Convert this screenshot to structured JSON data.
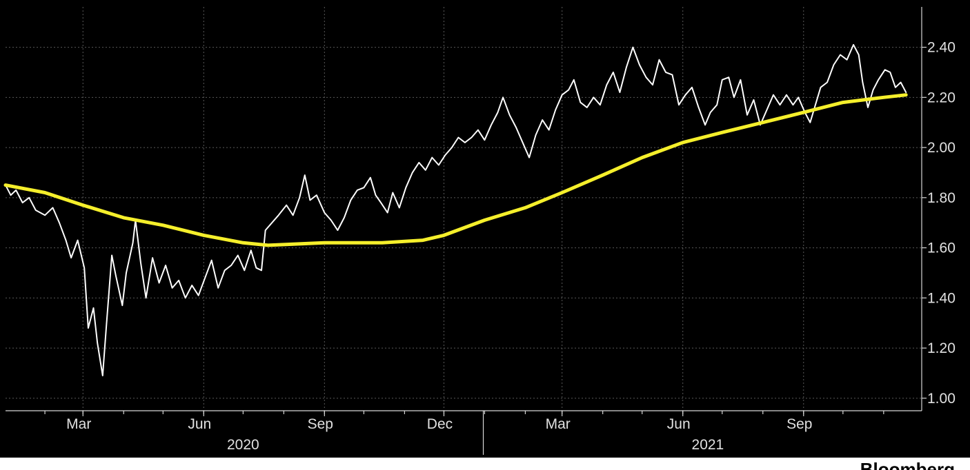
{
  "watermark": "Bloomberg",
  "colors": {
    "background": "#000000",
    "series_main": "#ffffff",
    "series_ma": "#f5ef2b",
    "text": "#e0e0e0"
  },
  "chart_data": {
    "type": "line",
    "title": "",
    "xlabel": "",
    "ylabel": "",
    "x_range": [
      "2020-01-02",
      "2021-11-30"
    ],
    "ylim": [
      0.95,
      2.55
    ],
    "y_ticks": [
      "1.00",
      "1.20",
      "1.40",
      "1.60",
      "1.80",
      "2.00",
      "2.20",
      "2.40"
    ],
    "x_month_ticks": [
      {
        "date": "2020-03-01",
        "label": "Mar"
      },
      {
        "date": "2020-06-01",
        "label": "Jun"
      },
      {
        "date": "2020-09-01",
        "label": "Sep"
      },
      {
        "date": "2020-12-01",
        "label": "Dec"
      },
      {
        "date": "2021-03-01",
        "label": "Mar"
      },
      {
        "date": "2021-06-01",
        "label": "Jun"
      },
      {
        "date": "2021-09-01",
        "label": "Sep"
      }
    ],
    "x_year_labels": [
      {
        "date": "2020-07-01",
        "label": "2020"
      },
      {
        "date": "2021-06-20",
        "label": "2021"
      }
    ],
    "grid": true,
    "y_axis_side": "right",
    "series": [
      {
        "color": "#ffffff",
        "points": [
          [
            "2020-01-02",
            1.85
          ],
          [
            "2020-01-06",
            1.81
          ],
          [
            "2020-01-10",
            1.83
          ],
          [
            "2020-01-15",
            1.78
          ],
          [
            "2020-01-20",
            1.8
          ],
          [
            "2020-01-25",
            1.75
          ],
          [
            "2020-02-01",
            1.73
          ],
          [
            "2020-02-07",
            1.76
          ],
          [
            "2020-02-12",
            1.7
          ],
          [
            "2020-02-17",
            1.63
          ],
          [
            "2020-02-21",
            1.56
          ],
          [
            "2020-02-26",
            1.63
          ],
          [
            "2020-03-02",
            1.52
          ],
          [
            "2020-03-05",
            1.28
          ],
          [
            "2020-03-09",
            1.36
          ],
          [
            "2020-03-12",
            1.22
          ],
          [
            "2020-03-16",
            1.09
          ],
          [
            "2020-03-19",
            1.3
          ],
          [
            "2020-03-23",
            1.57
          ],
          [
            "2020-03-26",
            1.49
          ],
          [
            "2020-03-31",
            1.37
          ],
          [
            "2020-04-03",
            1.5
          ],
          [
            "2020-04-08",
            1.62
          ],
          [
            "2020-04-10",
            1.71
          ],
          [
            "2020-04-14",
            1.54
          ],
          [
            "2020-04-18",
            1.4
          ],
          [
            "2020-04-23",
            1.56
          ],
          [
            "2020-04-28",
            1.46
          ],
          [
            "2020-05-03",
            1.53
          ],
          [
            "2020-05-08",
            1.44
          ],
          [
            "2020-05-13",
            1.47
          ],
          [
            "2020-05-18",
            1.4
          ],
          [
            "2020-05-23",
            1.45
          ],
          [
            "2020-05-28",
            1.41
          ],
          [
            "2020-06-02",
            1.48
          ],
          [
            "2020-06-07",
            1.55
          ],
          [
            "2020-06-12",
            1.44
          ],
          [
            "2020-06-17",
            1.51
          ],
          [
            "2020-06-22",
            1.53
          ],
          [
            "2020-06-27",
            1.57
          ],
          [
            "2020-07-02",
            1.51
          ],
          [
            "2020-07-07",
            1.59
          ],
          [
            "2020-07-11",
            1.52
          ],
          [
            "2020-07-15",
            1.51
          ],
          [
            "2020-07-18",
            1.67
          ],
          [
            "2020-07-23",
            1.7
          ],
          [
            "2020-07-28",
            1.73
          ],
          [
            "2020-08-03",
            1.77
          ],
          [
            "2020-08-08",
            1.73
          ],
          [
            "2020-08-13",
            1.8
          ],
          [
            "2020-08-17",
            1.89
          ],
          [
            "2020-08-21",
            1.79
          ],
          [
            "2020-08-26",
            1.81
          ],
          [
            "2020-09-01",
            1.74
          ],
          [
            "2020-09-06",
            1.71
          ],
          [
            "2020-09-11",
            1.67
          ],
          [
            "2020-09-16",
            1.72
          ],
          [
            "2020-09-21",
            1.79
          ],
          [
            "2020-09-26",
            1.83
          ],
          [
            "2020-10-01",
            1.84
          ],
          [
            "2020-10-06",
            1.88
          ],
          [
            "2020-10-10",
            1.81
          ],
          [
            "2020-10-14",
            1.78
          ],
          [
            "2020-10-19",
            1.74
          ],
          [
            "2020-10-23",
            1.82
          ],
          [
            "2020-10-28",
            1.76
          ],
          [
            "2020-11-02",
            1.84
          ],
          [
            "2020-11-07",
            1.9
          ],
          [
            "2020-11-12",
            1.94
          ],
          [
            "2020-11-17",
            1.91
          ],
          [
            "2020-11-22",
            1.96
          ],
          [
            "2020-11-27",
            1.93
          ],
          [
            "2020-12-02",
            1.97
          ],
          [
            "2020-12-07",
            2.0
          ],
          [
            "2020-12-12",
            2.04
          ],
          [
            "2020-12-17",
            2.02
          ],
          [
            "2020-12-22",
            2.04
          ],
          [
            "2020-12-27",
            2.07
          ],
          [
            "2021-01-01",
            2.03
          ],
          [
            "2021-01-06",
            2.09
          ],
          [
            "2021-01-11",
            2.14
          ],
          [
            "2021-01-15",
            2.2
          ],
          [
            "2021-01-20",
            2.13
          ],
          [
            "2021-01-25",
            2.08
          ],
          [
            "2021-01-30",
            2.02
          ],
          [
            "2021-02-04",
            1.96
          ],
          [
            "2021-02-09",
            2.05
          ],
          [
            "2021-02-14",
            2.11
          ],
          [
            "2021-02-19",
            2.07
          ],
          [
            "2021-02-24",
            2.15
          ],
          [
            "2021-03-01",
            2.21
          ],
          [
            "2021-03-06",
            2.23
          ],
          [
            "2021-03-10",
            2.27
          ],
          [
            "2021-03-15",
            2.18
          ],
          [
            "2021-03-20",
            2.16
          ],
          [
            "2021-03-25",
            2.2
          ],
          [
            "2021-03-30",
            2.17
          ],
          [
            "2021-04-04",
            2.25
          ],
          [
            "2021-04-09",
            2.3
          ],
          [
            "2021-04-14",
            2.22
          ],
          [
            "2021-04-19",
            2.32
          ],
          [
            "2021-04-24",
            2.4
          ],
          [
            "2021-04-29",
            2.33
          ],
          [
            "2021-05-04",
            2.28
          ],
          [
            "2021-05-09",
            2.25
          ],
          [
            "2021-05-14",
            2.35
          ],
          [
            "2021-05-19",
            2.3
          ],
          [
            "2021-05-24",
            2.29
          ],
          [
            "2021-05-29",
            2.17
          ],
          [
            "2021-06-03",
            2.21
          ],
          [
            "2021-06-08",
            2.24
          ],
          [
            "2021-06-13",
            2.16
          ],
          [
            "2021-06-18",
            2.09
          ],
          [
            "2021-06-22",
            2.14
          ],
          [
            "2021-06-27",
            2.17
          ],
          [
            "2021-07-01",
            2.27
          ],
          [
            "2021-07-06",
            2.28
          ],
          [
            "2021-07-10",
            2.2
          ],
          [
            "2021-07-15",
            2.27
          ],
          [
            "2021-07-20",
            2.13
          ],
          [
            "2021-07-25",
            2.19
          ],
          [
            "2021-07-30",
            2.09
          ],
          [
            "2021-08-04",
            2.15
          ],
          [
            "2021-08-09",
            2.21
          ],
          [
            "2021-08-14",
            2.17
          ],
          [
            "2021-08-19",
            2.21
          ],
          [
            "2021-08-24",
            2.17
          ],
          [
            "2021-08-28",
            2.2
          ],
          [
            "2021-09-02",
            2.14
          ],
          [
            "2021-09-06",
            2.1
          ],
          [
            "2021-09-10",
            2.17
          ],
          [
            "2021-09-14",
            2.24
          ],
          [
            "2021-09-19",
            2.26
          ],
          [
            "2021-09-24",
            2.33
          ],
          [
            "2021-09-29",
            2.37
          ],
          [
            "2021-10-04",
            2.35
          ],
          [
            "2021-10-09",
            2.41
          ],
          [
            "2021-10-13",
            2.37
          ],
          [
            "2021-10-16",
            2.26
          ],
          [
            "2021-10-20",
            2.16
          ],
          [
            "2021-10-24",
            2.23
          ],
          [
            "2021-10-28",
            2.27
          ],
          [
            "2021-11-02",
            2.31
          ],
          [
            "2021-11-06",
            2.3
          ],
          [
            "2021-11-10",
            2.24
          ],
          [
            "2021-11-14",
            2.26
          ],
          [
            "2021-11-18",
            2.22
          ]
        ]
      },
      {
        "color": "#f5ef2b",
        "points": [
          [
            "2020-01-02",
            1.85
          ],
          [
            "2020-02-01",
            1.82
          ],
          [
            "2020-03-01",
            1.77
          ],
          [
            "2020-04-01",
            1.72
          ],
          [
            "2020-05-01",
            1.69
          ],
          [
            "2020-06-01",
            1.65
          ],
          [
            "2020-07-01",
            1.62
          ],
          [
            "2020-07-20",
            1.61
          ],
          [
            "2020-09-01",
            1.62
          ],
          [
            "2020-10-15",
            1.62
          ],
          [
            "2020-11-15",
            1.63
          ],
          [
            "2020-12-01",
            1.65
          ],
          [
            "2021-01-01",
            1.71
          ],
          [
            "2021-02-01",
            1.76
          ],
          [
            "2021-03-01",
            1.82
          ],
          [
            "2021-04-01",
            1.89
          ],
          [
            "2021-05-01",
            1.96
          ],
          [
            "2021-06-01",
            2.02
          ],
          [
            "2021-07-01",
            2.06
          ],
          [
            "2021-08-01",
            2.1
          ],
          [
            "2021-09-01",
            2.14
          ],
          [
            "2021-10-01",
            2.18
          ],
          [
            "2021-11-01",
            2.2
          ],
          [
            "2021-11-18",
            2.21
          ]
        ]
      }
    ]
  }
}
